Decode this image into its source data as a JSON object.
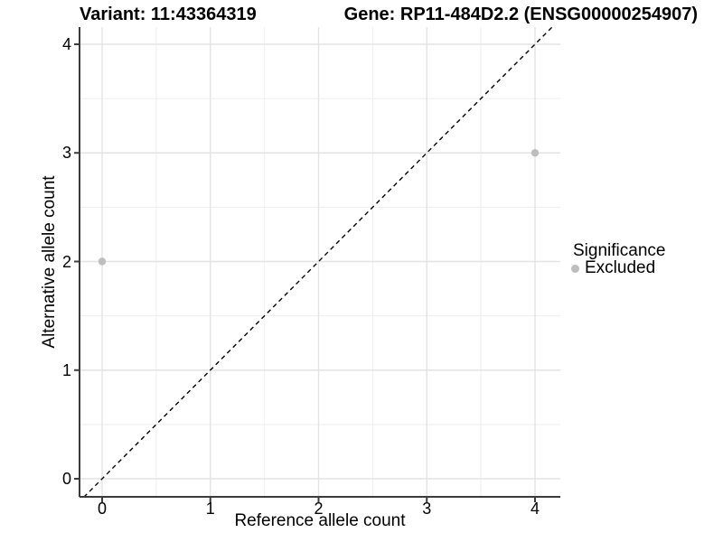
{
  "chart_data": {
    "type": "scatter",
    "titles": {
      "left": "Variant: 11:43364319",
      "right": "Gene: RP11-484D2.2 (ENSG00000254907)"
    },
    "xlabel": "Reference allele count",
    "ylabel": "Alternative allele count",
    "x_ticks": [
      0,
      1,
      2,
      3,
      4
    ],
    "y_ticks": [
      0,
      1,
      2,
      3,
      4
    ],
    "xlim": [
      -0.21,
      4.23
    ],
    "ylim": [
      -0.17,
      4.16
    ],
    "grid": {
      "major": true,
      "minor": true
    },
    "points": [
      {
        "x": 0,
        "y": 2,
        "significance": "Excluded"
      },
      {
        "x": 4,
        "y": 3,
        "significance": "Excluded"
      }
    ],
    "reference_line": {
      "type": "identity",
      "equation": "y = x",
      "style": "dashed"
    },
    "legend": {
      "title": "Significance",
      "position": "right",
      "entries": [
        {
          "label": "Excluded",
          "color": "#bebebe"
        }
      ]
    },
    "colors": {
      "point": "#bebebe",
      "grid_major": "#e3e3e3",
      "grid_minor": "#eeeeee",
      "axis": "#3c3c3c",
      "reference_line": "#000000",
      "text": "#000000"
    }
  }
}
